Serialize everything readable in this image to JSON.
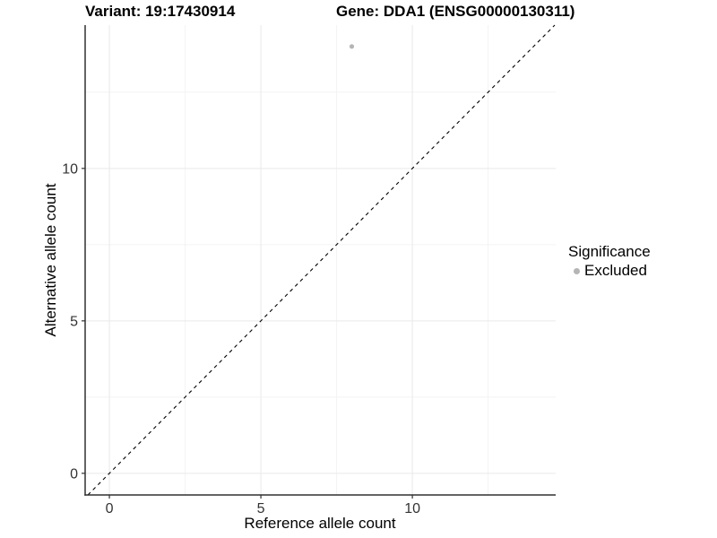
{
  "titles": {
    "variant": "Variant: 19:17430914",
    "gene": "Gene: DDA1 (ENSG00000130311)"
  },
  "legend": {
    "title": "Significance",
    "items": [
      {
        "label": "Excluded",
        "color": "#b5b5b5"
      }
    ]
  },
  "chart_data": {
    "type": "scatter",
    "title": "Variant: 19:17430914  Gene: DDA1 (ENSG00000130311)",
    "xlabel": "Reference allele count",
    "ylabel": "Alternative allele count",
    "xlim": [
      -0.8,
      14.73
    ],
    "ylim": [
      -0.71,
      14.7
    ],
    "x_ticks": [
      0,
      5,
      10
    ],
    "y_ticks": [
      0,
      5,
      10
    ],
    "x_minor_ticks": [
      2.5,
      7.5,
      12.5
    ],
    "y_minor_ticks": [
      2.5,
      7.5,
      12.5
    ],
    "grid": true,
    "legend_position": "right",
    "series": [
      {
        "name": "Excluded",
        "color": "#b5b5b5",
        "points": [
          {
            "x": 8,
            "y": 14
          }
        ]
      }
    ],
    "reference_line": {
      "type": "identity",
      "equation": "y = x",
      "style": "dashed",
      "color": "#000000"
    }
  },
  "style": {
    "axis_color": "#303030",
    "tick_label_color": "#333333",
    "grid_major_color": "#e9e9e9",
    "grid_minor_color": "#f3f3f3",
    "background": "#ffffff"
  }
}
